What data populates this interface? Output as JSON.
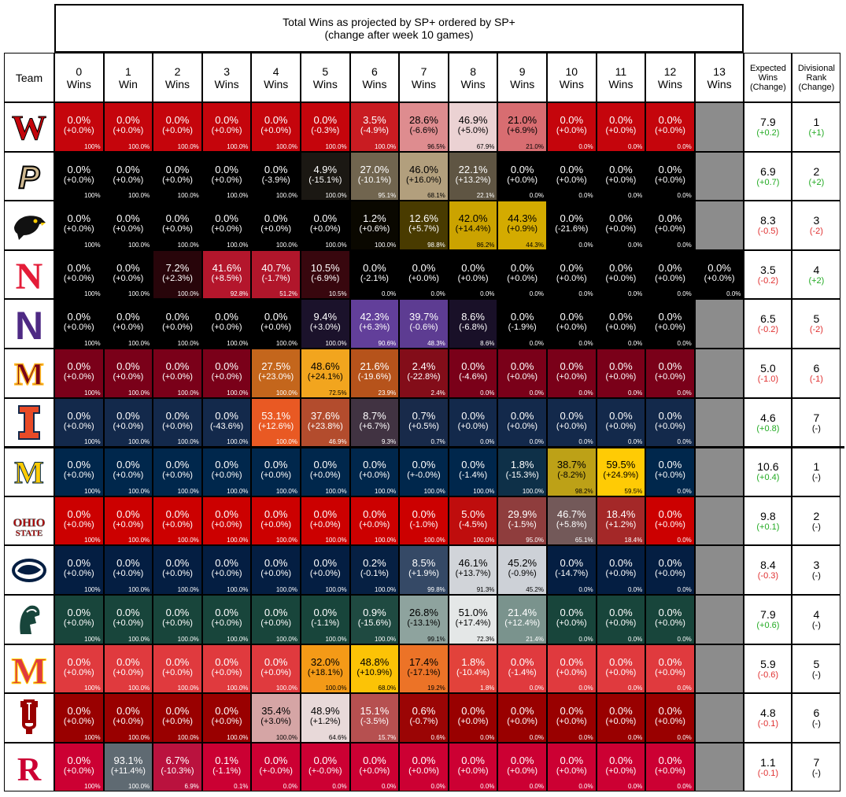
{
  "chart_data": {
    "type": "table",
    "title": "Total Wins as projected by SP+ ordered by SP+",
    "subtitle": "(change after week 10 games)",
    "team_header": "Team",
    "win_columns": [
      {
        "num": "0",
        "label": "Wins"
      },
      {
        "num": "1",
        "label": "Win"
      },
      {
        "num": "2",
        "label": "Wins"
      },
      {
        "num": "3",
        "label": "Wins"
      },
      {
        "num": "4",
        "label": "Wins"
      },
      {
        "num": "5",
        "label": "Wins"
      },
      {
        "num": "6",
        "label": "Wins"
      },
      {
        "num": "7",
        "label": "Wins"
      },
      {
        "num": "8",
        "label": "Wins"
      },
      {
        "num": "9",
        "label": "Wins"
      },
      {
        "num": "10",
        "label": "Wins"
      },
      {
        "num": "11",
        "label": "Wins"
      },
      {
        "num": "12",
        "label": "Wins"
      },
      {
        "num": "13",
        "label": "Wins"
      }
    ],
    "expected_header": [
      "Expected",
      "Wins",
      "(Change)"
    ],
    "rank_header": [
      "Divisional",
      "Rank",
      "(Change)"
    ],
    "teams": [
      {
        "team": "Wisconsin",
        "logo_icon": "wisconsin-w-logo",
        "base": "#c5050c",
        "hi": "#f0f0f0",
        "pct": [
          0,
          0,
          0,
          0,
          0,
          0,
          3.5,
          28.6,
          46.9,
          21.0,
          0,
          0,
          0
        ],
        "pct_text": [
          "0.0%",
          "0.0%",
          "0.0%",
          "0.0%",
          "0.0%",
          "0.0%",
          "3.5%",
          "28.6%",
          "46.9%",
          "21.0%",
          "0.0%",
          "0.0%",
          "0.0%"
        ],
        "chg_text": [
          "(+0.0%)",
          "(+0.0%)",
          "(+0.0%)",
          "(+0.0%)",
          "(+0.0%)",
          "(-0.3%)",
          "(-4.9%)",
          "(-6.6%)",
          "(+5.0%)",
          "(+6.9%)",
          "(+0.0%)",
          "(+0.0%)",
          "(+0.0%)"
        ],
        "cum_text": [
          "100%",
          "100.0%",
          "100.0%",
          "100.0%",
          "100.0%",
          "100.0%",
          "100.0%",
          "96.5%",
          "67.9%",
          "21.0%",
          "0.0%",
          "0.0%",
          "0.0%"
        ],
        "expected": "7.9",
        "expected_change": "(+0.2)",
        "rank": "1",
        "rank_change": "(+1)"
      },
      {
        "team": "Purdue",
        "logo_icon": "purdue-p-logo",
        "base": "#000000",
        "hi": "#cfb991",
        "pct": [
          0,
          0,
          0,
          0,
          0,
          4.9,
          27.0,
          46.0,
          22.1,
          0,
          0,
          0,
          0
        ],
        "pct_text": [
          "0.0%",
          "0.0%",
          "0.0%",
          "0.0%",
          "0.0%",
          "4.9%",
          "27.0%",
          "46.0%",
          "22.1%",
          "0.0%",
          "0.0%",
          "0.0%",
          "0.0%"
        ],
        "chg_text": [
          "(+0.0%)",
          "(+0.0%)",
          "(+0.0%)",
          "(+0.0%)",
          "(-3.9%)",
          "(-15.1%)",
          "(-10.1%)",
          "(+16.0%)",
          "(+13.2%)",
          "(+0.0%)",
          "(+0.0%)",
          "(+0.0%)",
          "(+0.0%)"
        ],
        "cum_text": [
          "100%",
          "100.0%",
          "100.0%",
          "100.0%",
          "100.0%",
          "100.0%",
          "95.1%",
          "68.1%",
          "22.1%",
          "0.0%",
          "0.0%",
          "0.0%",
          "0.0%"
        ],
        "expected": "6.9",
        "expected_change": "(+0.7)",
        "rank": "2",
        "rank_change": "(+2)"
      },
      {
        "team": "Iowa",
        "logo_icon": "iowa-hawk-logo",
        "base": "#000000",
        "hi": "#ffcd00",
        "pct": [
          0,
          0,
          0,
          0,
          0,
          0,
          1.2,
          12.6,
          42.0,
          44.3,
          0,
          0,
          0
        ],
        "pct_text": [
          "0.0%",
          "0.0%",
          "0.0%",
          "0.0%",
          "0.0%",
          "0.0%",
          "1.2%",
          "12.6%",
          "42.0%",
          "44.3%",
          "0.0%",
          "0.0%",
          "0.0%"
        ],
        "chg_text": [
          "(+0.0%)",
          "(+0.0%)",
          "(+0.0%)",
          "(+0.0%)",
          "(+0.0%)",
          "(+0.0%)",
          "(+0.6%)",
          "(+5.7%)",
          "(+14.4%)",
          "(+0.9%)",
          "(-21.6%)",
          "(+0.0%)",
          "(+0.0%)"
        ],
        "cum_text": [
          "100%",
          "100.0%",
          "100.0%",
          "100.0%",
          "100.0%",
          "100.0%",
          "100.0%",
          "98.8%",
          "86.2%",
          "44.3%",
          "0.0%",
          "0.0%",
          "0.0%"
        ],
        "expected": "8.3",
        "expected_change": "(-0.5)",
        "rank": "3",
        "rank_change": "(-2)"
      },
      {
        "team": "Nebraska",
        "logo_icon": "nebraska-n-logo",
        "base": "#000000",
        "hi": "#e41c38",
        "pct": [
          0,
          0,
          7.2,
          41.6,
          40.7,
          10.5,
          0,
          0,
          0,
          0,
          0,
          0,
          0,
          0
        ],
        "pct_text": [
          "0.0%",
          "0.0%",
          "7.2%",
          "41.6%",
          "40.7%",
          "10.5%",
          "0.0%",
          "0.0%",
          "0.0%",
          "0.0%",
          "0.0%",
          "0.0%",
          "0.0%",
          "0.0%"
        ],
        "chg_text": [
          "(+0.0%)",
          "(+0.0%)",
          "(+2.3%)",
          "(+8.5%)",
          "(-1.7%)",
          "(-6.9%)",
          "(-2.1%)",
          "(+0.0%)",
          "(+0.0%)",
          "(+0.0%)",
          "(+0.0%)",
          "(+0.0%)",
          "(+0.0%)",
          "(+0.0%)"
        ],
        "cum_text": [
          "100%",
          "100.0%",
          "100.0%",
          "92.8%",
          "51.2%",
          "10.5%",
          "0.0%",
          "0.0%",
          "0.0%",
          "0.0%",
          "0.0%",
          "0.0%",
          "0.0%",
          "0.0%"
        ],
        "expected": "3.5",
        "expected_change": "(-0.2)",
        "rank": "4",
        "rank_change": "(+2)"
      },
      {
        "team": "Northwestern",
        "logo_icon": "northwestern-n-logo",
        "base": "#000000",
        "hi": "#7b4fc0",
        "pct": [
          0,
          0,
          0,
          0,
          0,
          9.4,
          42.3,
          39.7,
          8.6,
          0,
          0,
          0,
          0
        ],
        "pct_text": [
          "0.0%",
          "0.0%",
          "0.0%",
          "0.0%",
          "0.0%",
          "9.4%",
          "42.3%",
          "39.7%",
          "8.6%",
          "0.0%",
          "0.0%",
          "0.0%",
          "0.0%"
        ],
        "chg_text": [
          "(+0.0%)",
          "(+0.0%)",
          "(+0.0%)",
          "(+0.0%)",
          "(+0.0%)",
          "(+3.0%)",
          "(+6.3%)",
          "(-0.6%)",
          "(-6.8%)",
          "(-1.9%)",
          "(+0.0%)",
          "(+0.0%)",
          "(+0.0%)"
        ],
        "cum_text": [
          "100%",
          "100.0%",
          "100.0%",
          "100.0%",
          "100.0%",
          "100.0%",
          "90.6%",
          "48.3%",
          "8.6%",
          "0.0%",
          "0.0%",
          "0.0%",
          "0.0%"
        ],
        "expected": "6.5",
        "expected_change": "(-0.2)",
        "rank": "5",
        "rank_change": "(-2)"
      },
      {
        "team": "Minnesota",
        "logo_icon": "minnesota-m-logo",
        "base": "#7a0019",
        "hi": "#ffb71e",
        "pct": [
          0,
          0,
          0,
          0,
          27.5,
          48.6,
          21.6,
          2.4,
          0,
          0,
          0,
          0,
          0
        ],
        "pct_text": [
          "0.0%",
          "0.0%",
          "0.0%",
          "0.0%",
          "27.5%",
          "48.6%",
          "21.6%",
          "2.4%",
          "0.0%",
          "0.0%",
          "0.0%",
          "0.0%",
          "0.0%"
        ],
        "chg_text": [
          "(+0.0%)",
          "(+0.0%)",
          "(+0.0%)",
          "(+0.0%)",
          "(+23.0%)",
          "(+24.1%)",
          "(-19.6%)",
          "(-22.8%)",
          "(-4.6%)",
          "(+0.0%)",
          "(+0.0%)",
          "(+0.0%)",
          "(+0.0%)"
        ],
        "cum_text": [
          "100%",
          "100.0%",
          "100.0%",
          "100.0%",
          "100.0%",
          "72.5%",
          "23.9%",
          "2.4%",
          "0.0%",
          "0.0%",
          "0.0%",
          "0.0%",
          "0.0%"
        ],
        "expected": "5.0",
        "expected_change": "(-1.0)",
        "rank": "6",
        "rank_change": "(-1)"
      },
      {
        "team": "Illinois",
        "logo_icon": "illinois-i-logo",
        "base": "#13294b",
        "hi": "#f05a22",
        "pct": [
          0,
          0,
          0,
          0,
          53.1,
          37.6,
          8.7,
          0.7,
          0,
          0,
          0,
          0,
          0
        ],
        "pct_text": [
          "0.0%",
          "0.0%",
          "0.0%",
          "0.0%",
          "53.1%",
          "37.6%",
          "8.7%",
          "0.7%",
          "0.0%",
          "0.0%",
          "0.0%",
          "0.0%",
          "0.0%"
        ],
        "chg_text": [
          "(+0.0%)",
          "(+0.0%)",
          "(+0.0%)",
          "(-43.6%)",
          "(+12.6%)",
          "(+23.8%)",
          "(+6.7%)",
          "(+0.5%)",
          "(+0.0%)",
          "(+0.0%)",
          "(+0.0%)",
          "(+0.0%)",
          "(+0.0%)"
        ],
        "cum_text": [
          "100%",
          "100.0%",
          "100.0%",
          "100.0%",
          "100.0%",
          "46.9%",
          "9.3%",
          "0.7%",
          "0.0%",
          "0.0%",
          "0.0%",
          "0.0%",
          "0.0%"
        ],
        "expected": "4.6",
        "expected_change": "(+0.8)",
        "rank": "7",
        "rank_change": "(-)"
      },
      {
        "team": "Michigan",
        "logo_icon": "michigan-m-logo",
        "base": "#00274c",
        "hi": "#ffcb05",
        "pct": [
          0,
          0,
          0,
          0,
          0,
          0,
          0,
          0,
          0,
          1.8,
          38.7,
          59.5,
          0
        ],
        "pct_text": [
          "0.0%",
          "0.0%",
          "0.0%",
          "0.0%",
          "0.0%",
          "0.0%",
          "0.0%",
          "0.0%",
          "0.0%",
          "1.8%",
          "38.7%",
          "59.5%",
          "0.0%"
        ],
        "chg_text": [
          "(+0.0%)",
          "(+0.0%)",
          "(+0.0%)",
          "(+0.0%)",
          "(+0.0%)",
          "(+0.0%)",
          "(+0.0%)",
          "(+-0.0%)",
          "(-1.4%)",
          "(-15.3%)",
          "(-8.2%)",
          "(+24.9%)",
          "(+0.0%)"
        ],
        "cum_text": [
          "100%",
          "100.0%",
          "100.0%",
          "100.0%",
          "100.0%",
          "100.0%",
          "100.0%",
          "100.0%",
          "100.0%",
          "100.0%",
          "98.2%",
          "59.5%",
          "0.0%"
        ],
        "expected": "10.6",
        "expected_change": "(+0.4)",
        "rank": "1",
        "rank_change": "(-)"
      },
      {
        "team": "Ohio State",
        "logo_icon": "ohio-state-logo",
        "base": "#cc0000",
        "hi": "#666666",
        "pct": [
          0,
          0,
          0,
          0,
          0,
          0,
          0,
          0,
          5.0,
          29.9,
          46.7,
          18.4,
          0
        ],
        "pct_text": [
          "0.0%",
          "0.0%",
          "0.0%",
          "0.0%",
          "0.0%",
          "0.0%",
          "0.0%",
          "0.0%",
          "5.0%",
          "29.9%",
          "46.7%",
          "18.4%",
          "0.0%"
        ],
        "chg_text": [
          "(+0.0%)",
          "(+0.0%)",
          "(+0.0%)",
          "(+0.0%)",
          "(+0.0%)",
          "(+0.0%)",
          "(+0.0%)",
          "(-1.0%)",
          "(-4.5%)",
          "(-1.5%)",
          "(+5.8%)",
          "(+1.2%)",
          "(+0.0%)"
        ],
        "cum_text": [
          "100%",
          "100.0%",
          "100.0%",
          "100.0%",
          "100.0%",
          "100.0%",
          "100.0%",
          "100.0%",
          "100.0%",
          "95.0%",
          "65.1%",
          "18.4%",
          "0.0%"
        ],
        "expected": "9.8",
        "expected_change": "(+0.1)",
        "rank": "2",
        "rank_change": "(-)"
      },
      {
        "team": "Penn State",
        "logo_icon": "penn-state-lion-logo",
        "base": "#041e42",
        "hi": "#f2f2f2",
        "pct": [
          0,
          0,
          0,
          0,
          0,
          0,
          0.2,
          8.5,
          46.1,
          45.2,
          0,
          0,
          0
        ],
        "pct_text": [
          "0.0%",
          "0.0%",
          "0.0%",
          "0.0%",
          "0.0%",
          "0.0%",
          "0.2%",
          "8.5%",
          "46.1%",
          "45.2%",
          "0.0%",
          "0.0%",
          "0.0%"
        ],
        "chg_text": [
          "(+0.0%)",
          "(+0.0%)",
          "(+0.0%)",
          "(+0.0%)",
          "(+0.0%)",
          "(+0.0%)",
          "(-0.1%)",
          "(+1.9%)",
          "(+13.7%)",
          "(-0.9%)",
          "(-14.7%)",
          "(+0.0%)",
          "(+0.0%)"
        ],
        "cum_text": [
          "100%",
          "100.0%",
          "100.0%",
          "100.0%",
          "100.0%",
          "100.0%",
          "100.0%",
          "99.8%",
          "91.3%",
          "45.2%",
          "0.0%",
          "0.0%",
          "0.0%"
        ],
        "expected": "8.4",
        "expected_change": "(-0.3)",
        "rank": "3",
        "rank_change": "(-)"
      },
      {
        "team": "Michigan State",
        "logo_icon": "michigan-state-spartan-logo",
        "base": "#18453b",
        "hi": "#f2f2f2",
        "pct": [
          0,
          0,
          0,
          0,
          0,
          0,
          0.9,
          26.8,
          51.0,
          21.4,
          0,
          0,
          0
        ],
        "pct_text": [
          "0.0%",
          "0.0%",
          "0.0%",
          "0.0%",
          "0.0%",
          "0.0%",
          "0.9%",
          "26.8%",
          "51.0%",
          "21.4%",
          "0.0%",
          "0.0%",
          "0.0%"
        ],
        "chg_text": [
          "(+0.0%)",
          "(+0.0%)",
          "(+0.0%)",
          "(+0.0%)",
          "(+0.0%)",
          "(-1.1%)",
          "(-15.6%)",
          "(-13.1%)",
          "(+17.4%)",
          "(+12.4%)",
          "(+0.0%)",
          "(+0.0%)",
          "(+0.0%)"
        ],
        "cum_text": [
          "100%",
          "100.0%",
          "100.0%",
          "100.0%",
          "100.0%",
          "100.0%",
          "100.0%",
          "99.1%",
          "72.3%",
          "21.4%",
          "0.0%",
          "0.0%",
          "0.0%"
        ],
        "expected": "7.9",
        "expected_change": "(+0.6)",
        "rank": "4",
        "rank_change": "(-)"
      },
      {
        "team": "Maryland",
        "logo_icon": "maryland-m-logo",
        "base": "#e03a3e",
        "hi": "#ffd200",
        "pct": [
          0,
          0,
          0,
          0,
          0,
          32.0,
          48.8,
          17.4,
          1.8,
          0,
          0,
          0,
          0
        ],
        "pct_text": [
          "0.0%",
          "0.0%",
          "0.0%",
          "0.0%",
          "0.0%",
          "32.0%",
          "48.8%",
          "17.4%",
          "1.8%",
          "0.0%",
          "0.0%",
          "0.0%",
          "0.0%"
        ],
        "chg_text": [
          "(+0.0%)",
          "(+0.0%)",
          "(+0.0%)",
          "(+0.0%)",
          "(+0.0%)",
          "(+18.1%)",
          "(+10.9%)",
          "(-17.1%)",
          "(-10.4%)",
          "(-1.4%)",
          "(+0.0%)",
          "(+0.0%)",
          "(+0.0%)"
        ],
        "cum_text": [
          "100%",
          "100.0%",
          "100.0%",
          "100.0%",
          "100.0%",
          "100.0%",
          "68.0%",
          "19.2%",
          "1.8%",
          "0.0%",
          "0.0%",
          "0.0%",
          "0.0%"
        ],
        "expected": "5.9",
        "expected_change": "(-0.6)",
        "rank": "5",
        "rank_change": "(-)"
      },
      {
        "team": "Indiana",
        "logo_icon": "indiana-iu-logo",
        "base": "#990000",
        "hi": "#f0f0f0",
        "pct": [
          0,
          0,
          0,
          0,
          35.4,
          48.9,
          15.1,
          0.6,
          0,
          0,
          0,
          0,
          0
        ],
        "pct_text": [
          "0.0%",
          "0.0%",
          "0.0%",
          "0.0%",
          "35.4%",
          "48.9%",
          "15.1%",
          "0.6%",
          "0.0%",
          "0.0%",
          "0.0%",
          "0.0%",
          "0.0%"
        ],
        "chg_text": [
          "(+0.0%)",
          "(+0.0%)",
          "(+0.0%)",
          "(+0.0%)",
          "(+3.0%)",
          "(+1.2%)",
          "(-3.5%)",
          "(-0.7%)",
          "(+0.0%)",
          "(+0.0%)",
          "(+0.0%)",
          "(+0.0%)",
          "(+0.0%)"
        ],
        "cum_text": [
          "100%",
          "100.0%",
          "100.0%",
          "100.0%",
          "100.0%",
          "64.6%",
          "15.7%",
          "0.6%",
          "0.0%",
          "0.0%",
          "0.0%",
          "0.0%",
          "0.0%"
        ],
        "expected": "4.8",
        "expected_change": "(-0.1)",
        "rank": "6",
        "rank_change": "(-)"
      },
      {
        "team": "Rutgers",
        "logo_icon": "rutgers-r-logo",
        "base": "#cc0033",
        "hi": "#5f6a72",
        "pct": [
          0,
          93.1,
          6.7,
          0.1,
          0,
          0,
          0,
          0,
          0,
          0,
          0,
          0,
          0
        ],
        "pct_text": [
          "0.0%",
          "93.1%",
          "6.7%",
          "0.1%",
          "0.0%",
          "0.0%",
          "0.0%",
          "0.0%",
          "0.0%",
          "0.0%",
          "0.0%",
          "0.0%",
          "0.0%"
        ],
        "chg_text": [
          "(+0.0%)",
          "(+11.4%)",
          "(-10.3%)",
          "(-1.1%)",
          "(+-0.0%)",
          "(+-0.0%)",
          "(+0.0%)",
          "(+0.0%)",
          "(+0.0%)",
          "(+0.0%)",
          "(+0.0%)",
          "(+0.0%)",
          "(+0.0%)"
        ],
        "cum_text": [
          "100%",
          "100.0%",
          "6.9%",
          "0.1%",
          "0.0%",
          "0.0%",
          "0.0%",
          "0.0%",
          "0.0%",
          "0.0%",
          "0.0%",
          "0.0%",
          "0.0%"
        ],
        "expected": "1.1",
        "expected_change": "(-0.1)",
        "rank": "7",
        "rank_change": "(-)"
      }
    ],
    "colors": {
      "positive_change": "#22aa22",
      "negative_change": "#e03030",
      "neutral_change": "#000000",
      "no_value": "#8c8c8c"
    }
  }
}
